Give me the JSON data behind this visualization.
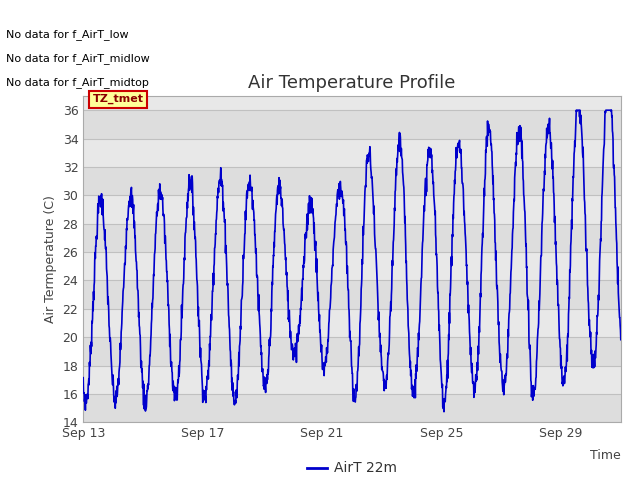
{
  "title": "Air Temperature Profile",
  "xlabel": "Time",
  "ylabel": "Air Temperature (C)",
  "xlim_days": [
    0,
    18
  ],
  "ylim": [
    14,
    37
  ],
  "yticks": [
    14,
    16,
    18,
    20,
    22,
    24,
    26,
    28,
    30,
    32,
    34,
    36
  ],
  "xtick_labels": [
    "Sep 13",
    "Sep 17",
    "Sep 21",
    "Sep 25",
    "Sep 29"
  ],
  "xtick_positions": [
    0,
    4,
    8,
    12,
    16
  ],
  "line_color": "#0000CC",
  "line_width": 1.2,
  "legend_label": "AirT 22m",
  "no_data_texts": [
    "No data for f_AirT_low",
    "No data for f_AirT_midlow",
    "No data for f_AirT_midtop"
  ],
  "tz_label": "TZ_tmet",
  "background_color": "#ffffff",
  "plot_bg_color": "#e8e8e8",
  "title_fontsize": 13,
  "axis_label_fontsize": 9,
  "tick_fontsize": 9,
  "no_data_fontsize": 8,
  "tz_fontsize": 8
}
